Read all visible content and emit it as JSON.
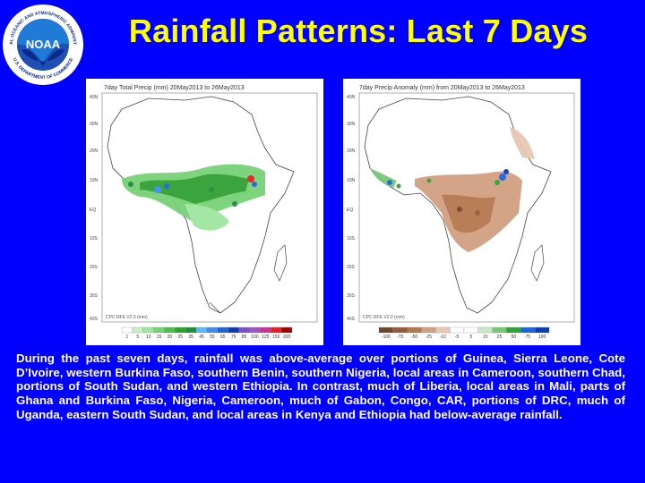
{
  "logo": {
    "text_top": "NATIONAL OCEANIC AND ATMOSPHERIC ADMINISTRATION",
    "text_bottom": "U.S. DEPARTMENT OF COMMERCE",
    "center": "NOAA"
  },
  "title": "Rainfall Patterns: Last 7 Days",
  "maps": [
    {
      "title": "7day Total Precip (mm) 20May2013 to 26May2013",
      "credit": "CPC RFE V2.0 (mm)",
      "lat_labels": [
        "40N",
        "30N",
        "20N",
        "10N",
        "EQ",
        "10S",
        "20S",
        "30S",
        "40S"
      ],
      "legend_ticks": [
        "1",
        "5",
        "10",
        "15",
        "20",
        "25",
        "35",
        "45",
        "55",
        "65",
        "75",
        "85",
        "100",
        "125",
        "150",
        "200"
      ],
      "legend_colors": [
        "#ffffff",
        "#c8f0c8",
        "#a0e6a0",
        "#78d278",
        "#50be50",
        "#32a032",
        "#1e8c3c",
        "#64b4ff",
        "#3c8cf0",
        "#1e64dc",
        "#0a3cb4",
        "#7850c8",
        "#a050c8",
        "#c83296",
        "#e61e1e",
        "#a00000"
      ]
    },
    {
      "title": "7day Precip Anomaly (mm) from 20May2013 to 26May2013",
      "credit": "CPC RFE V2.0 (mm)",
      "lat_labels": [
        "40N",
        "30N",
        "20N",
        "10N",
        "EQ",
        "10S",
        "20S",
        "30S",
        "40S"
      ],
      "legend_ticks": [
        "-100",
        "-75",
        "-50",
        "-25",
        "-10",
        "-5",
        "5",
        "10",
        "25",
        "50",
        "75",
        "100"
      ],
      "legend_colors": [
        "#6e4628",
        "#965a3c",
        "#b47850",
        "#d2a082",
        "#e6c8b4",
        "#ffffff",
        "#ffffff",
        "#c8e6c8",
        "#78c878",
        "#32a03c",
        "#1e64dc",
        "#0a3cb4"
      ]
    }
  ],
  "paragraph": "During the past seven days, rainfall was above-average over portions of Guinea, Sierra Leone, Cote D’Ivoire, western Burkina Faso, southern Benin, southern Nigeria, local areas in Cameroon, southern Chad, portions of South Sudan, and western Ethiopia. In contrast, much of Liberia, local areas in Mali, parts of Ghana and Burkina Faso, Nigeria, Cameroon, much of Gabon, Congo, CAR, portions of DRC, much of Uganda, eastern South Sudan, and local areas in Kenya and Ethiopia had below-average rainfall."
}
